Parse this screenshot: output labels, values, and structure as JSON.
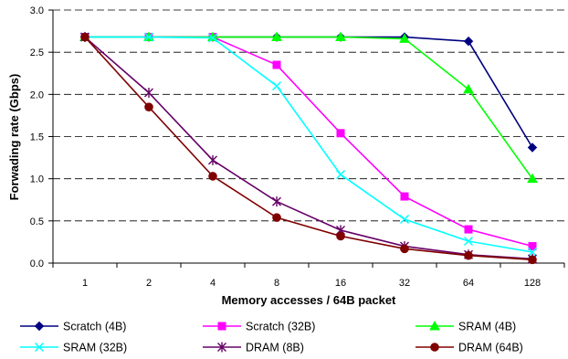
{
  "chart_data": {
    "type": "line",
    "xlabel": "Memory accesses / 64B packet",
    "ylabel": "Forwading rate (Gbps)",
    "categories": [
      "1",
      "2",
      "4",
      "8",
      "16",
      "32",
      "64",
      "128"
    ],
    "ylim": [
      0,
      3
    ],
    "yticks": [
      "0.0",
      "0.5",
      "1.0",
      "1.5",
      "2.0",
      "2.5",
      "3.0"
    ],
    "grid": "horizontal dashed",
    "legend_position": "bottom",
    "series": [
      {
        "name": "Scratch (4B)",
        "color": "#000080",
        "marker": "diamond",
        "values": [
          2.68,
          2.68,
          2.68,
          2.68,
          2.68,
          2.68,
          2.63,
          1.37
        ]
      },
      {
        "name": "Scratch (32B)",
        "color": "#FF00FF",
        "marker": "square",
        "values": [
          2.68,
          2.68,
          2.68,
          2.35,
          1.54,
          0.79,
          0.4,
          0.2
        ]
      },
      {
        "name": "SRAM (4B)",
        "color": "#00FF00",
        "marker": "triangle",
        "values": [
          2.68,
          2.68,
          2.68,
          2.68,
          2.68,
          2.66,
          2.06,
          1.0
        ]
      },
      {
        "name": "SRAM (32B)",
        "color": "#00FFFF",
        "marker": "x",
        "values": [
          2.68,
          2.68,
          2.67,
          2.1,
          1.05,
          0.52,
          0.26,
          0.13
        ]
      },
      {
        "name": "DRAM (8B)",
        "color": "#660066",
        "marker": "asterisk",
        "values": [
          2.68,
          2.02,
          1.22,
          0.73,
          0.39,
          0.2,
          0.1,
          0.05
        ]
      },
      {
        "name": "DRAM (64B)",
        "color": "#800000",
        "marker": "circle",
        "values": [
          2.68,
          1.85,
          1.03,
          0.54,
          0.32,
          0.17,
          0.09,
          0.04
        ]
      }
    ]
  }
}
